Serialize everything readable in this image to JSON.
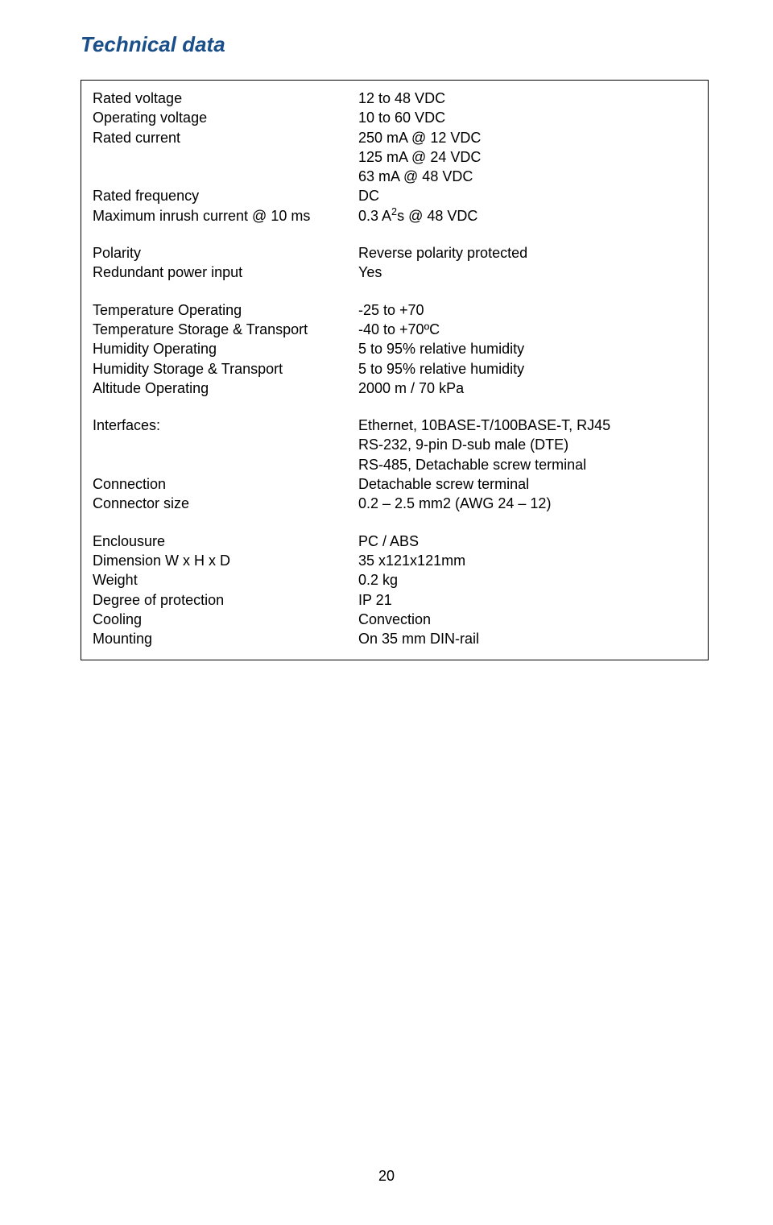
{
  "page": {
    "title": "Technical data",
    "number": "20",
    "background_color": "#ffffff",
    "title_color": "#1a4f8a",
    "text_color": "#000000",
    "border_color": "#000000",
    "font_size_title": 26,
    "font_size_body": 18
  },
  "groups": [
    {
      "rows": [
        {
          "label": "Rated voltage",
          "value": "12 to 48 VDC"
        },
        {
          "label": "Operating voltage",
          "value": "10 to 60 VDC"
        },
        {
          "label": "Rated current",
          "value": "250 mA @ 12 VDC"
        },
        {
          "label": "",
          "value": "125 mA @ 24 VDC"
        },
        {
          "label": "",
          "value": "63 mA @ 48 VDC"
        },
        {
          "label": "Rated frequency",
          "value": "DC"
        },
        {
          "label": "Maximum inrush current @ 10 ms",
          "value_html": "0.3 A<sup>2</sup>s @ 48 VDC"
        }
      ]
    },
    {
      "rows": [
        {
          "label": "Polarity",
          "value": "Reverse polarity protected"
        },
        {
          "label": "Redundant power input",
          "value": "Yes"
        }
      ]
    },
    {
      "rows": [
        {
          "label": "Temperature Operating",
          "value": "-25 to +70"
        },
        {
          "label": "Temperature Storage & Transport",
          "value": "-40 to +70ºC"
        },
        {
          "label": "Humidity Operating",
          "value": "5 to 95% relative humidity"
        },
        {
          "label": "Humidity Storage  & Transport",
          "value": "5 to 95% relative humidity"
        },
        {
          "label": "Altitude Operating",
          "value": "2000 m / 70 kPa"
        }
      ]
    },
    {
      "rows": [
        {
          "label": "Interfaces:",
          "value": "Ethernet, 10BASE-T/100BASE-T, RJ45"
        },
        {
          "label": "",
          "value": "RS-232, 9-pin D-sub male (DTE)"
        },
        {
          "label": "",
          "value": "RS-485, Detachable screw terminal"
        },
        {
          "label": "Connection",
          "value": "Detachable screw terminal"
        },
        {
          "label": "Connector size",
          "value": "0.2 – 2.5 mm2 (AWG 24 – 12)"
        }
      ]
    },
    {
      "rows": [
        {
          "label": "Enclousure",
          "value": "PC / ABS"
        },
        {
          "label": "Dimension W x H x D",
          "value": "35 x121x121mm"
        },
        {
          "label": "Weight",
          "value": "0.2 kg"
        },
        {
          "label": "Degree of protection",
          "value": "IP 21"
        },
        {
          "label": "Cooling",
          "value": "Convection"
        },
        {
          "label": "Mounting",
          "value": "On 35 mm DIN-rail"
        }
      ]
    }
  ]
}
